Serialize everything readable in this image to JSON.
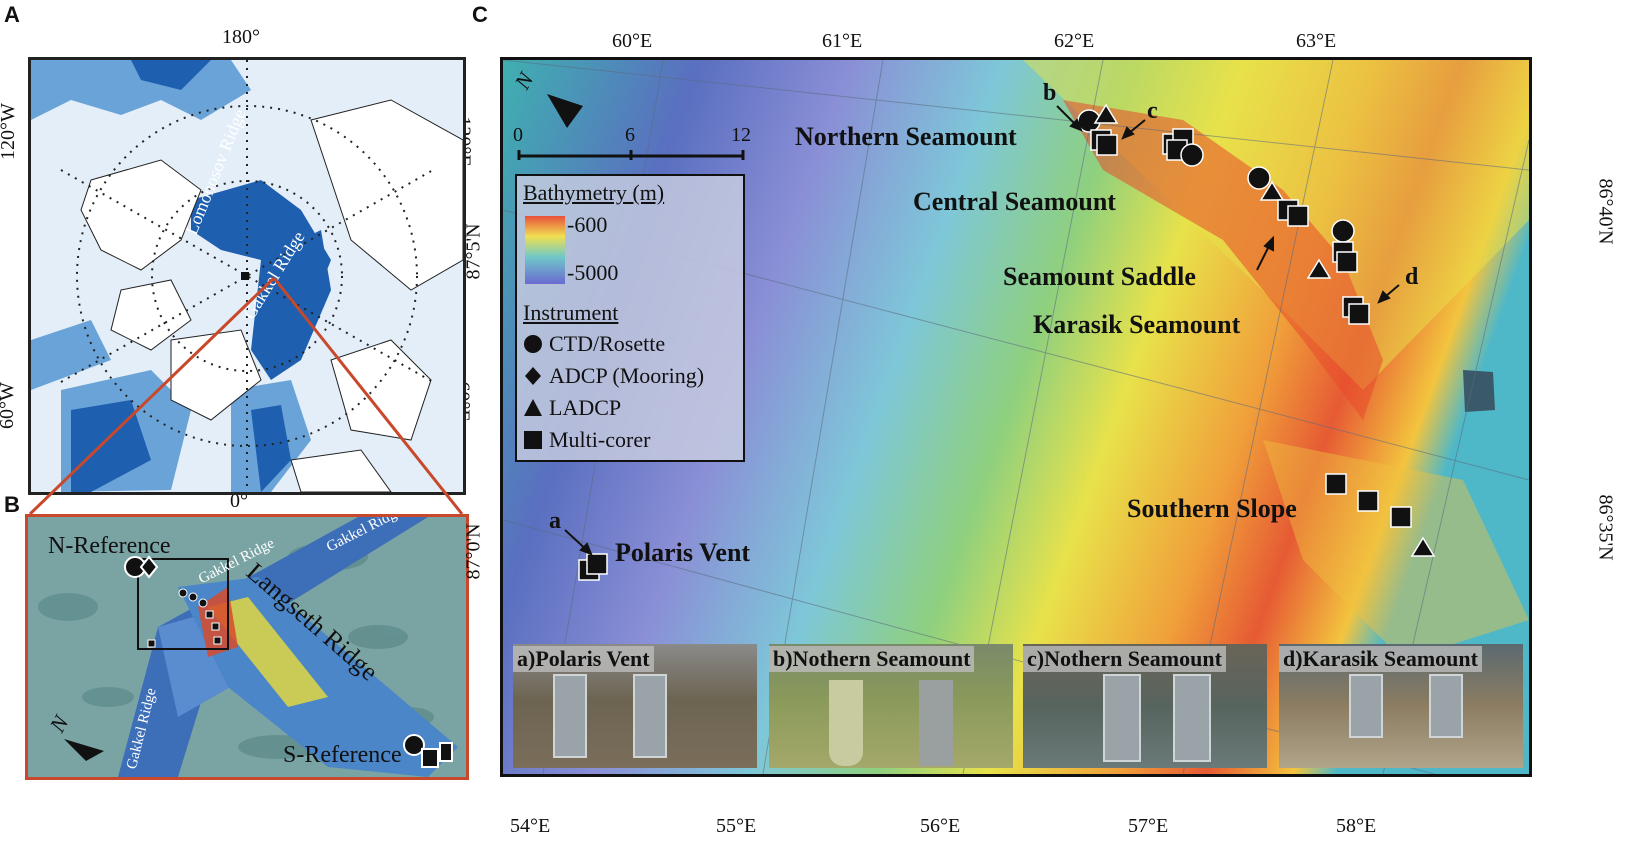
{
  "panels": {
    "a": {
      "letter": "A",
      "ticks": {
        "top": "180°",
        "bottom": "0°",
        "left_top": "120°W",
        "left_bottom": "60°W",
        "right_top": "120°E",
        "right_bottom": "60°E"
      },
      "labels": {
        "lomonosov": "Lomonosov Ridge",
        "gakkel": "Gakkel Ridge"
      },
      "colors": {
        "ocean_deep": "#1f5fb0",
        "ocean_mid": "#6aa3d8",
        "shelf": "#e3eef9",
        "border": "#222222"
      }
    },
    "b": {
      "letter": "B",
      "labels": {
        "n_reference": "N-Reference",
        "s_reference": "S-Reference",
        "langseth": "Langseth Ridge",
        "gakkel_top": "Gakkel Ridge",
        "gakkel_mid": "Gakkel Ridge",
        "gakkel_left": "Gakkel Ridge"
      },
      "north": "N",
      "colors": {
        "background": "#7aa4a4",
        "frame": "#c8482c"
      }
    },
    "c": {
      "letter": "C",
      "ticks_top": [
        "60°E",
        "61°E",
        "62°E",
        "63°E"
      ],
      "ticks_bottom": [
        "54°E",
        "55°E",
        "56°E",
        "57°E",
        "58°E"
      ],
      "ticks_left": [
        "87°5'N",
        "87°0'N"
      ],
      "ticks_right": [
        "86°40'N",
        "86°35'N"
      ],
      "north": "N",
      "scale": {
        "labels": [
          "0",
          "6",
          "12"
        ]
      },
      "features": {
        "northern": "Northern Seamount",
        "central": "Central Seamount",
        "saddle": "Seamount Saddle",
        "karasik": "Karasik Seamount",
        "southern": "Southern Slope",
        "polaris": "Polaris Vent"
      },
      "callouts": {
        "a": "a",
        "b": "b",
        "c": "c",
        "d": "d"
      },
      "legend": {
        "bathymetry_title": "Bathymetry (m)",
        "bathy_min": "-600",
        "bathy_max": "-5000",
        "instrument_title": "Instrument",
        "instruments": [
          {
            "icon": "circle-icon",
            "label": "CTD/Rosette"
          },
          {
            "icon": "diamond-icon",
            "label": "ADCP (Mooring)"
          },
          {
            "icon": "triangle-icon",
            "label": "LADCP"
          },
          {
            "icon": "square-icon",
            "label": "Multi-corer"
          }
        ]
      },
      "photos": [
        {
          "label": "a)Polaris Vent",
          "color": "#6d6452"
        },
        {
          "label": "b)Nothern Seamount",
          "color": "#8a9a5a"
        },
        {
          "label": "c)Nothern Seamount",
          "color": "#57645e"
        },
        {
          "label": "d)Karasik Seamount",
          "color": "#8c7d62"
        }
      ]
    }
  }
}
